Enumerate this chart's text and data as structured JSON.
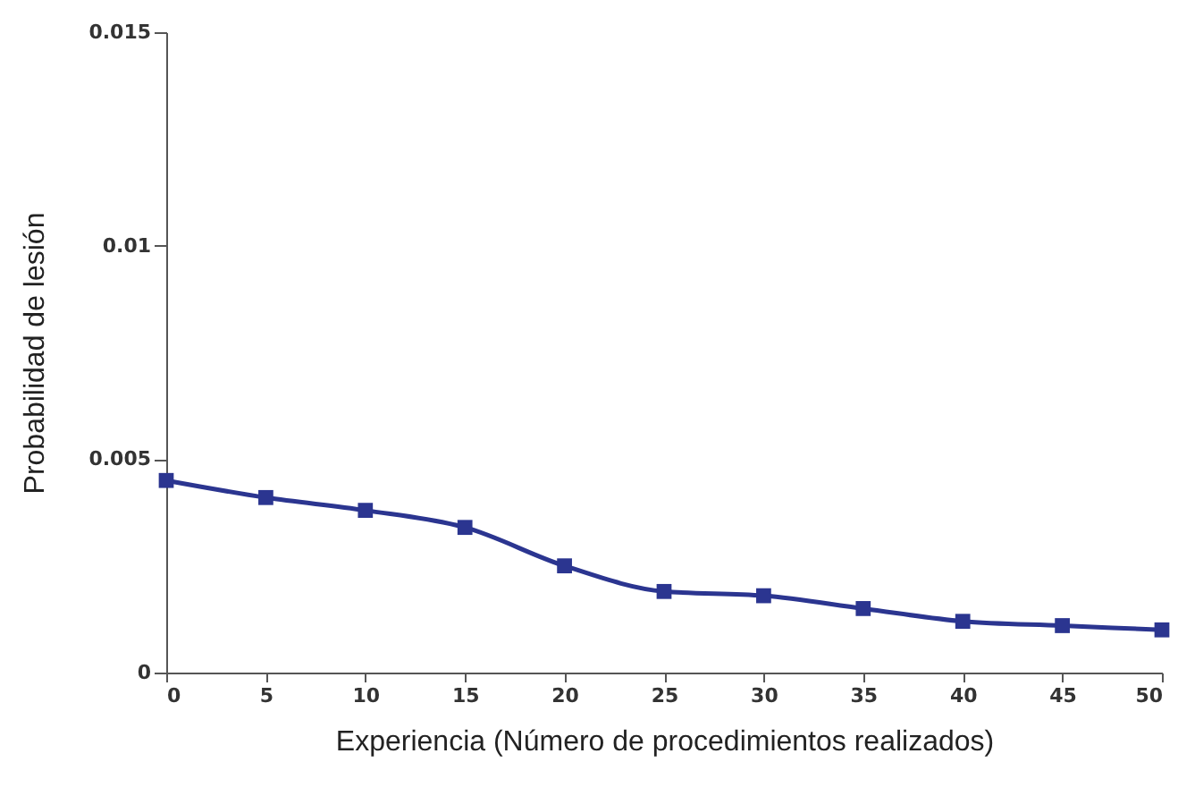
{
  "chart_data": {
    "type": "line",
    "xlabel": "Experiencia (Número de procedimientos realizados)",
    "ylabel": "Probabilidad de lesión",
    "x": [
      0,
      5,
      10,
      15,
      20,
      25,
      30,
      35,
      40,
      45,
      50
    ],
    "series": [
      {
        "color": "#2b3590",
        "values": [
          0.0045,
          0.0041,
          0.0038,
          0.0034,
          0.0025,
          0.0019,
          0.0018,
          0.0015,
          0.0012,
          0.0011,
          0.001
        ]
      }
    ],
    "xlim": [
      0,
      50
    ],
    "xticks": [
      0,
      5,
      10,
      15,
      20,
      25,
      30,
      35,
      40,
      45,
      50
    ],
    "ylim": [
      0,
      0.015
    ],
    "yticks": [
      0,
      0.005,
      0.01,
      0.015
    ],
    "grid": false,
    "marker": "square",
    "line_style": "solid"
  }
}
